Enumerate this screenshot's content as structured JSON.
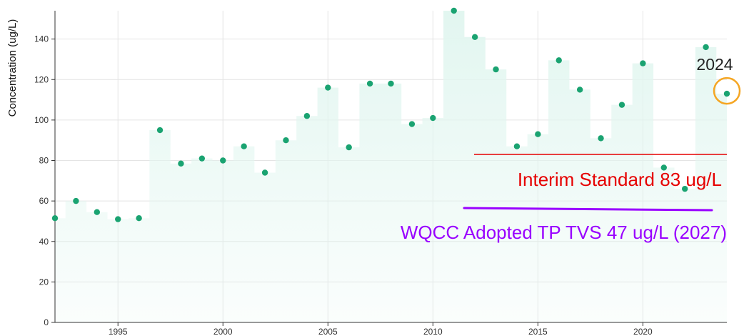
{
  "chart_data": {
    "type": "scatter",
    "title": "",
    "ylabel": "Concentration (ug/L)",
    "xlabel": "",
    "xlim": [
      1992,
      2024
    ],
    "ylim": [
      0,
      154
    ],
    "x_ticks": [
      1995,
      2000,
      2005,
      2010,
      2015,
      2020
    ],
    "y_ticks": [
      0,
      20,
      40,
      60,
      80,
      100,
      120,
      140
    ],
    "grid": true,
    "series": [
      {
        "x": [
          1992,
          1993,
          1994,
          1995,
          1996,
          1997,
          1998,
          1999,
          2000,
          2001,
          2002,
          2003,
          2004,
          2005,
          2006,
          2007,
          2008,
          2009,
          2010,
          2011,
          2012,
          2013,
          2014,
          2015,
          2016,
          2017,
          2018,
          2019,
          2020,
          2021,
          2022,
          2023,
          2024
        ],
        "values": [
          51.5,
          60,
          54.5,
          51,
          51.5,
          95,
          78.5,
          81,
          80,
          87,
          74,
          90,
          102,
          116,
          86.5,
          118,
          118,
          98,
          101,
          154,
          141,
          125,
          87,
          93,
          129.5,
          115,
          91,
          107.5,
          128,
          76.5,
          66,
          136,
          113
        ]
      }
    ],
    "annotations": [
      {
        "id": "interim",
        "text": "Interim Standard 83 ug/L",
        "value": 83,
        "color": "#e60000"
      },
      {
        "id": "wqcc",
        "text": "WQCC Adopted TP TVS 47 ug/L (2027)",
        "color": "#9900ff"
      },
      {
        "id": "highlight",
        "text": "2024",
        "highlight_x": 2024,
        "color": "#f5a623"
      }
    ],
    "colors": {
      "point": "#1aa371",
      "area": "#e2f6f0",
      "grid": "#e4e4e4",
      "axis": "#333333"
    }
  }
}
